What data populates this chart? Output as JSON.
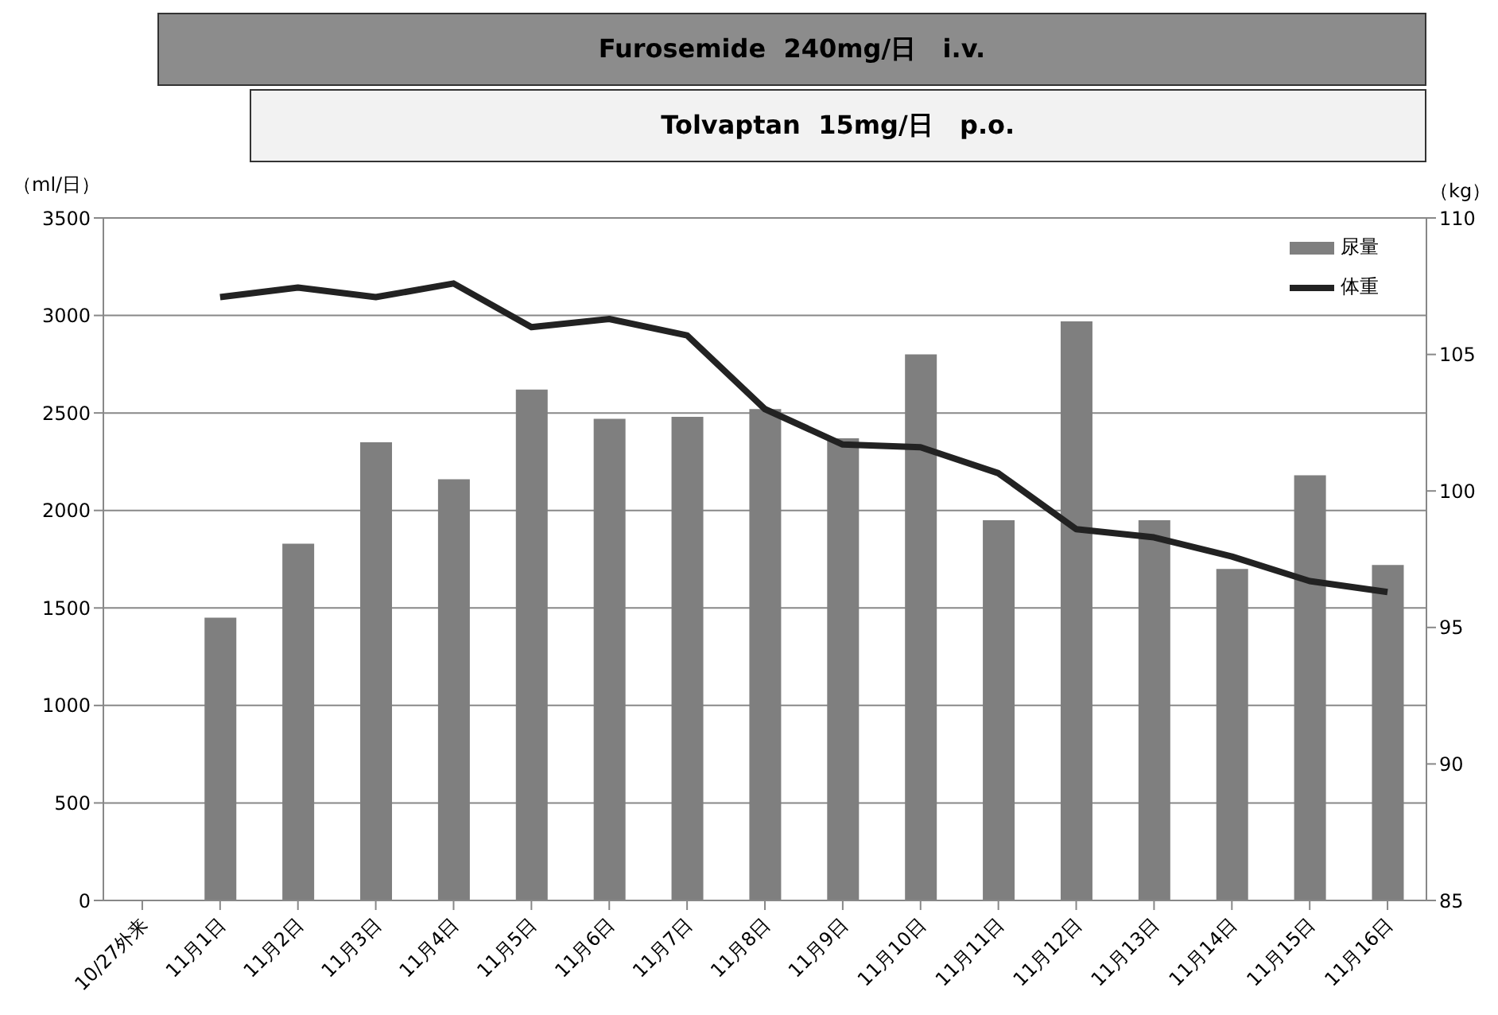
{
  "chart_data": {
    "type": "bar",
    "categories": [
      "10/27外来",
      "11月1日",
      "11月2日",
      "11月3日",
      "11月4日",
      "11月5日",
      "11月6日",
      "11月7日",
      "11月8日",
      "11月9日",
      "11月10日",
      "11月11日",
      "11月12日",
      "11月13日",
      "11月14日",
      "11月15日",
      "11月16日"
    ],
    "series": [
      {
        "name": "尿量",
        "color": "#7f7f7f",
        "values": [
          null,
          1450,
          1830,
          2350,
          2160,
          2620,
          2470,
          2480,
          2520,
          2370,
          2800,
          1950,
          2970,
          1950,
          1700,
          2180,
          1720
        ]
      },
      {
        "name": "体重",
        "type": "line",
        "axis": "y2",
        "color": "#222222",
        "values": [
          null,
          107.1,
          107.45,
          107.1,
          107.6,
          106.0,
          106.3,
          105.7,
          103.0,
          101.7,
          101.6,
          100.65,
          98.6,
          98.3,
          97.6,
          96.7,
          96.3
        ]
      }
    ],
    "ylabel": "（ml/日）",
    "y2label": "（kg）",
    "ylim": [
      0,
      3500
    ],
    "yticks": [
      0,
      500,
      1000,
      1500,
      2000,
      2500,
      3000,
      3500
    ],
    "y2lim": [
      85,
      110
    ],
    "y2ticks": [
      85,
      90,
      95,
      100,
      105,
      110
    ],
    "grid": "y",
    "legend": "top right",
    "marker": "none",
    "annotations": [
      "Furosemide  240mg/日   i.v.",
      "Tolvaptan  15mg/日   p.o."
    ]
  }
}
